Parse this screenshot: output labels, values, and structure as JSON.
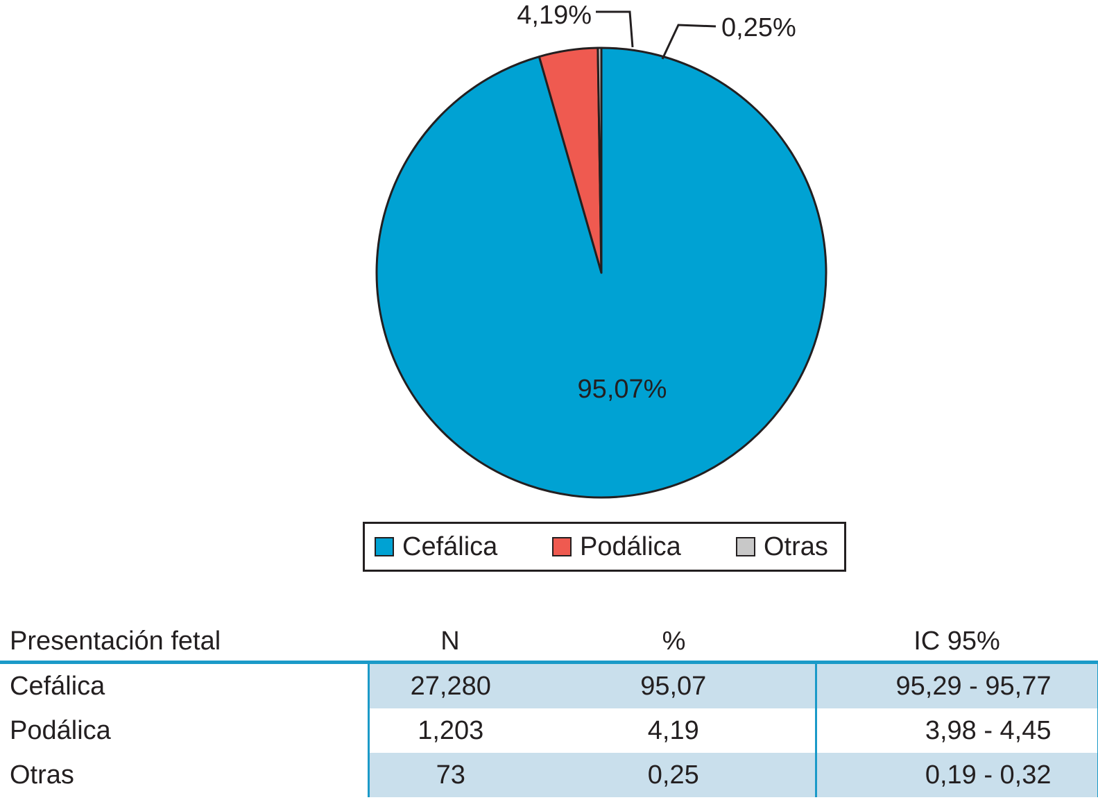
{
  "chart_data": {
    "type": "pie",
    "categories": [
      "Cefálica",
      "Podálica",
      "Otras"
    ],
    "values": [
      95.07,
      4.19,
      0.25
    ],
    "slice_labels": [
      "95,07%",
      "4,19%",
      "0,25%"
    ],
    "colors": [
      "#00a2d3",
      "#ef5a50",
      "#c8c8c8"
    ],
    "start_angle": "12 o'clock",
    "direction": "clockwise",
    "legend": {
      "position": "bottom",
      "entries": [
        "Cefálica",
        "Podálica",
        "Otras"
      ]
    }
  },
  "table": {
    "headers": [
      "Presentación fetal",
      "N",
      "%",
      "IC 95%"
    ],
    "rows": [
      [
        "Cefálica",
        "27,280",
        "95,07",
        "95,29 - 95,77"
      ],
      [
        "Podálica",
        "1,203",
        "4,19",
        "3,98 - 4,45"
      ],
      [
        "Otras",
        "73",
        "0,25",
        "0,19 - 0,32"
      ]
    ],
    "accent_color": "#1b9ac8",
    "shade_color": "#c9dfec"
  }
}
